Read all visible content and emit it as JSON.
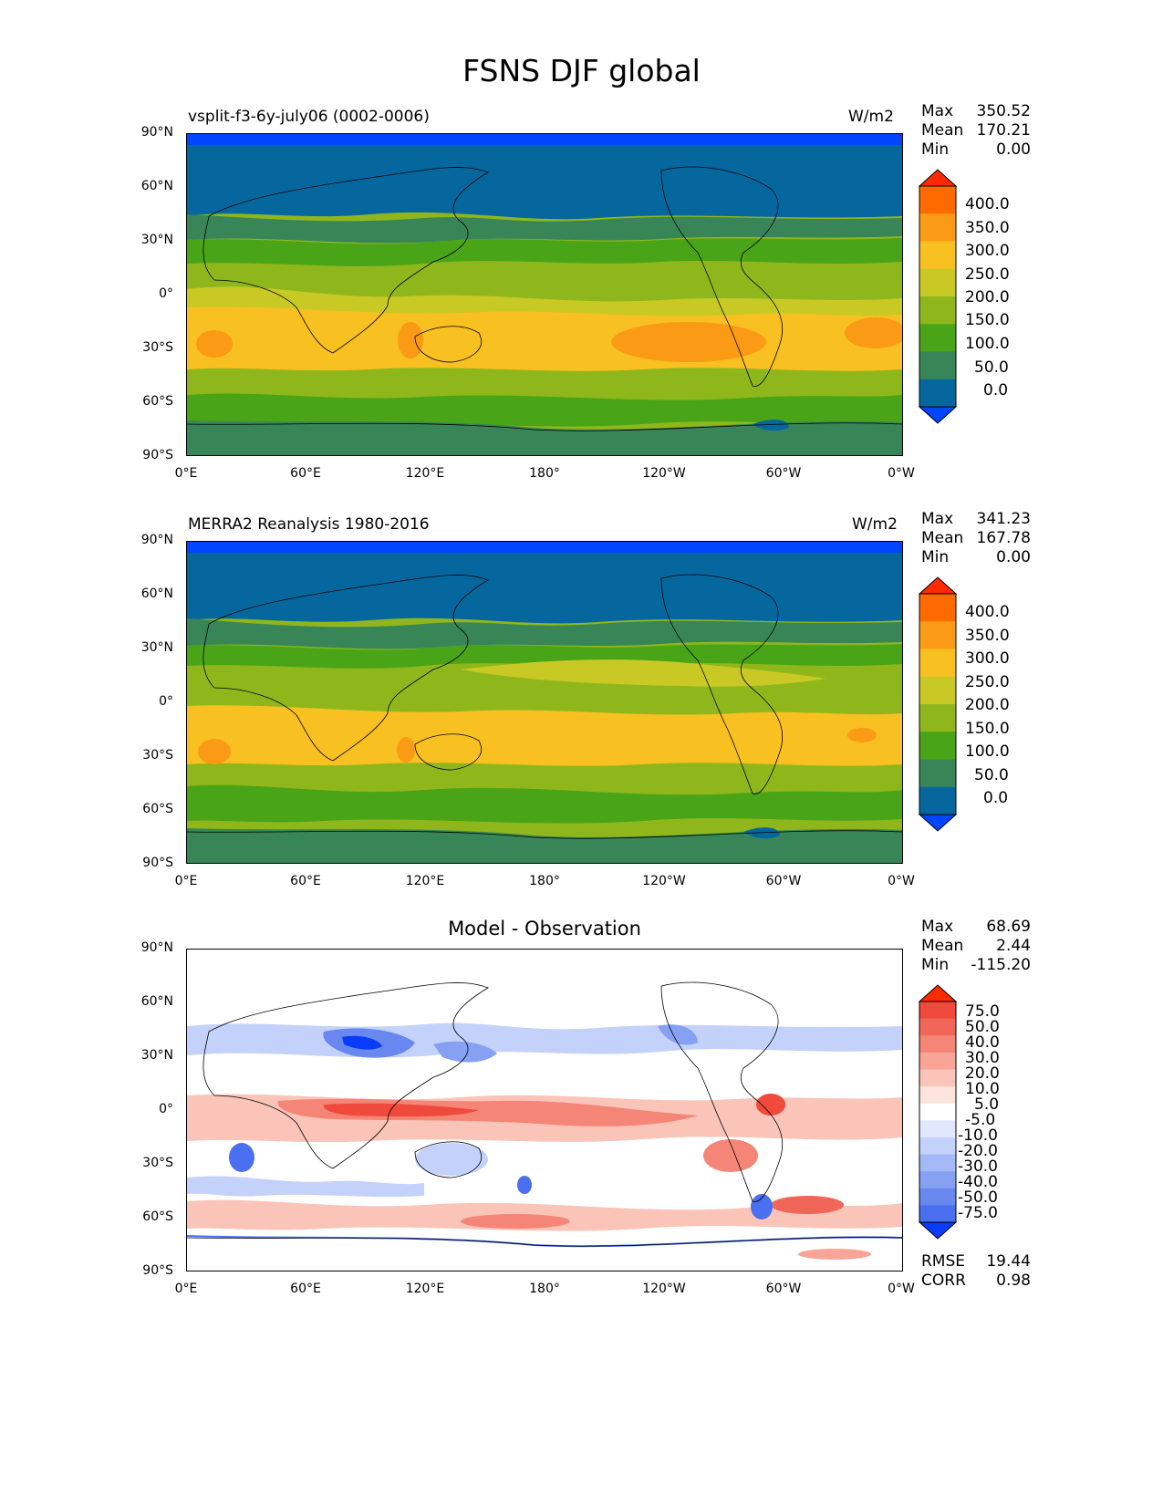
{
  "title": "FSNS DJF global",
  "axes": {
    "y_ticks": [
      "90°N",
      "60°N",
      "30°N",
      "0°",
      "30°S",
      "60°S",
      "90°S"
    ],
    "x_ticks": [
      "0°E",
      "60°E",
      "120°E",
      "180°",
      "120°W",
      "60°W",
      "0°W"
    ]
  },
  "panels": [
    {
      "id": "test",
      "left_title": "vsplit-f3-6y-july06 (0002-0006)",
      "center_title": "",
      "units": "W/m2",
      "stats": [
        {
          "label": "Max",
          "value": "350.52"
        },
        {
          "label": "Mean",
          "value": "170.21"
        },
        {
          "label": "Min",
          "value": "0.00"
        }
      ],
      "colorbar": {
        "labels": [
          "400.0",
          "350.0",
          "300.0",
          "250.0",
          "200.0",
          "150.0",
          "100.0",
          "50.0",
          "0.0"
        ],
        "colors": [
          "#ff2a00",
          "#ff6a00",
          "#fb9a14",
          "#f8c021",
          "#c9c925",
          "#8fb71c",
          "#4aa417",
          "#388658",
          "#05679e",
          "#0045ff"
        ]
      }
    },
    {
      "id": "ref",
      "left_title": "MERRA2 Reanalysis 1980-2016",
      "center_title": "",
      "units": "W/m2",
      "stats": [
        {
          "label": "Max",
          "value": "341.23"
        },
        {
          "label": "Mean",
          "value": "167.78"
        },
        {
          "label": "Min",
          "value": "0.00"
        }
      ],
      "colorbar": {
        "labels": [
          "400.0",
          "350.0",
          "300.0",
          "250.0",
          "200.0",
          "150.0",
          "100.0",
          "50.0",
          "0.0"
        ],
        "colors": [
          "#ff2a00",
          "#ff6a00",
          "#fb9a14",
          "#f8c021",
          "#c9c925",
          "#8fb71c",
          "#4aa417",
          "#388658",
          "#05679e",
          "#0045ff"
        ]
      }
    },
    {
      "id": "diff",
      "left_title": "",
      "center_title": "Model - Observation",
      "units": "",
      "stats": [
        {
          "label": "Max",
          "value": "68.69"
        },
        {
          "label": "Mean",
          "value": "2.44"
        },
        {
          "label": "Min",
          "value": "-115.20"
        }
      ],
      "colorbar": {
        "labels": [
          "75.0",
          "50.0",
          "40.0",
          "30.0",
          "20.0",
          "10.0",
          "5.0",
          "-5.0",
          "-10.0",
          "-20.0",
          "-30.0",
          "-40.0",
          "-50.0",
          "-75.0"
        ],
        "colors": [
          "#ff2a00",
          "#ef4a3b",
          "#f0675a",
          "#f58576",
          "#f8a496",
          "#fac4b8",
          "#fde4dd",
          "#ffffff",
          "#e1e8fd",
          "#c4d2fb",
          "#a5b9f7",
          "#86a0f2",
          "#6887ef",
          "#4a6ff0",
          "#0a3cff"
        ]
      },
      "footer_stats": [
        {
          "label": "RMSE",
          "value": "19.44"
        },
        {
          "label": "CORR",
          "value": "0.98"
        }
      ]
    }
  ]
}
